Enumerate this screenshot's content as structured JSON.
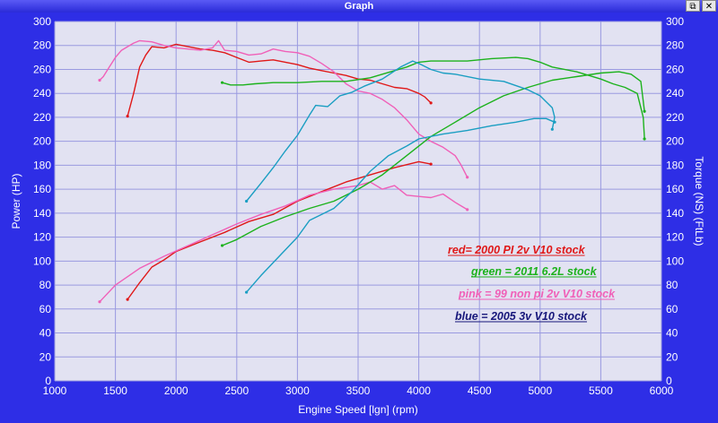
{
  "window": {
    "title": "Graph",
    "restore_label": "⧉",
    "close_label": "✕"
  },
  "colors": {
    "frame": "#2e2ee6",
    "plot_bg": "#e2e2f2",
    "grid": "#9a9ae0",
    "red": "#e01818",
    "green": "#1cb21c",
    "pink": "#f060b8",
    "blue": "#1a9ec2",
    "legend_blue": "#16167a"
  },
  "chart_data": {
    "type": "line",
    "xlabel": "Engine Speed [lgn] (rpm)",
    "ylabel_left": "Power (HP)",
    "ylabel_right": "Torque (NS) (FtLb)",
    "xlim": [
      1000,
      6000
    ],
    "ylim": [
      0,
      300
    ],
    "x_ticks": [
      "1000",
      "1500",
      "2000",
      "2500",
      "3000",
      "3500",
      "4000",
      "4500",
      "5000",
      "5500",
      "6000"
    ],
    "y_ticks": [
      "0",
      "20",
      "40",
      "60",
      "80",
      "100",
      "120",
      "140",
      "160",
      "180",
      "200",
      "220",
      "240",
      "260",
      "280",
      "300"
    ],
    "grid": true,
    "legend": [
      {
        "text": "red= 2000 PI 2v V10 stock",
        "color": "#e01818"
      },
      {
        "text": "green = 2011 6.2L stock",
        "color": "#1cb21c"
      },
      {
        "text": "pink = 99 non pi 2v V10 stock",
        "color": "#f060b8"
      },
      {
        "text": "blue = 2005 3v V10 stock",
        "color": "#16167a"
      }
    ],
    "series": [
      {
        "color": "#e01818",
        "kind": "torque",
        "points": [
          [
            1600,
            221
          ],
          [
            1650,
            240
          ],
          [
            1700,
            262
          ],
          [
            1750,
            272
          ],
          [
            1800,
            279
          ],
          [
            1900,
            278
          ],
          [
            2000,
            281
          ],
          [
            2100,
            279
          ],
          [
            2200,
            277
          ],
          [
            2300,
            276
          ],
          [
            2400,
            274
          ],
          [
            2500,
            270
          ],
          [
            2600,
            266
          ],
          [
            2700,
            267
          ],
          [
            2800,
            268
          ],
          [
            2900,
            266
          ],
          [
            3000,
            264
          ],
          [
            3100,
            261
          ],
          [
            3200,
            259
          ],
          [
            3300,
            257
          ],
          [
            3400,
            255
          ],
          [
            3500,
            252
          ],
          [
            3600,
            251
          ],
          [
            3700,
            248
          ],
          [
            3800,
            245
          ],
          [
            3900,
            244
          ],
          [
            4000,
            240
          ],
          [
            4050,
            237
          ],
          [
            4100,
            232
          ]
        ]
      },
      {
        "color": "#e01818",
        "kind": "power",
        "points": [
          [
            1600,
            68
          ],
          [
            1700,
            82
          ],
          [
            1800,
            95
          ],
          [
            1900,
            101
          ],
          [
            2000,
            108
          ],
          [
            2200,
            116
          ],
          [
            2400,
            124
          ],
          [
            2600,
            133
          ],
          [
            2800,
            139
          ],
          [
            3000,
            150
          ],
          [
            3200,
            158
          ],
          [
            3400,
            166
          ],
          [
            3600,
            172
          ],
          [
            3800,
            178
          ],
          [
            4000,
            183
          ],
          [
            4100,
            181
          ]
        ]
      },
      {
        "color": "#f060b8",
        "kind": "torque",
        "points": [
          [
            1370,
            251
          ],
          [
            1400,
            254
          ],
          [
            1450,
            262
          ],
          [
            1500,
            270
          ],
          [
            1550,
            276
          ],
          [
            1600,
            279
          ],
          [
            1650,
            282
          ],
          [
            1700,
            284
          ],
          [
            1800,
            283
          ],
          [
            1900,
            280
          ],
          [
            2000,
            278
          ],
          [
            2100,
            277
          ],
          [
            2200,
            276
          ],
          [
            2300,
            278
          ],
          [
            2350,
            284
          ],
          [
            2400,
            276
          ],
          [
            2500,
            275
          ],
          [
            2600,
            272
          ],
          [
            2700,
            273
          ],
          [
            2800,
            277
          ],
          [
            2900,
            275
          ],
          [
            3000,
            274
          ],
          [
            3100,
            271
          ],
          [
            3200,
            265
          ],
          [
            3300,
            258
          ],
          [
            3400,
            248
          ],
          [
            3500,
            242
          ],
          [
            3600,
            240
          ],
          [
            3700,
            235
          ],
          [
            3800,
            228
          ],
          [
            3900,
            218
          ],
          [
            4000,
            206
          ],
          [
            4100,
            200
          ],
          [
            4200,
            195
          ],
          [
            4300,
            188
          ],
          [
            4350,
            180
          ],
          [
            4400,
            170
          ]
        ]
      },
      {
        "color": "#f060b8",
        "kind": "power",
        "points": [
          [
            1370,
            66
          ],
          [
            1500,
            80
          ],
          [
            1700,
            94
          ],
          [
            1900,
            104
          ],
          [
            2100,
            113
          ],
          [
            2300,
            122
          ],
          [
            2500,
            131
          ],
          [
            2700,
            139
          ],
          [
            2900,
            146
          ],
          [
            3100,
            155
          ],
          [
            3300,
            160
          ],
          [
            3500,
            163
          ],
          [
            3600,
            166
          ],
          [
            3700,
            160
          ],
          [
            3800,
            163
          ],
          [
            3900,
            155
          ],
          [
            4000,
            154
          ],
          [
            4100,
            153
          ],
          [
            4200,
            156
          ],
          [
            4300,
            149
          ],
          [
            4400,
            143
          ]
        ]
      },
      {
        "color": "#1cb21c",
        "kind": "torque",
        "points": [
          [
            2380,
            249
          ],
          [
            2450,
            247
          ],
          [
            2550,
            247
          ],
          [
            2650,
            248
          ],
          [
            2800,
            249
          ],
          [
            3000,
            249
          ],
          [
            3200,
            250
          ],
          [
            3400,
            250
          ],
          [
            3600,
            253
          ],
          [
            3700,
            256
          ],
          [
            3800,
            259
          ],
          [
            3900,
            262
          ],
          [
            4000,
            266
          ],
          [
            4100,
            267
          ],
          [
            4200,
            267
          ],
          [
            4400,
            267
          ],
          [
            4600,
            269
          ],
          [
            4800,
            270
          ],
          [
            4900,
            269
          ],
          [
            5000,
            266
          ],
          [
            5100,
            262
          ],
          [
            5300,
            258
          ],
          [
            5500,
            252
          ],
          [
            5600,
            248
          ],
          [
            5700,
            245
          ],
          [
            5800,
            240
          ],
          [
            5850,
            220
          ],
          [
            5860,
            202
          ]
        ]
      },
      {
        "color": "#1cb21c",
        "kind": "power",
        "points": [
          [
            2380,
            113
          ],
          [
            2500,
            118
          ],
          [
            2700,
            129
          ],
          [
            2900,
            137
          ],
          [
            3100,
            144
          ],
          [
            3300,
            150
          ],
          [
            3500,
            160
          ],
          [
            3700,
            172
          ],
          [
            3900,
            188
          ],
          [
            4100,
            204
          ],
          [
            4300,
            216
          ],
          [
            4500,
            228
          ],
          [
            4700,
            238
          ],
          [
            4900,
            245
          ],
          [
            5100,
            251
          ],
          [
            5300,
            254
          ],
          [
            5500,
            257
          ],
          [
            5650,
            258
          ],
          [
            5750,
            256
          ],
          [
            5830,
            250
          ],
          [
            5860,
            225
          ]
        ]
      },
      {
        "color": "#1a9ec2",
        "kind": "torque",
        "points": [
          [
            2580,
            150
          ],
          [
            2700,
            165
          ],
          [
            2800,
            178
          ],
          [
            2900,
            192
          ],
          [
            3000,
            205
          ],
          [
            3100,
            222
          ],
          [
            3150,
            230
          ],
          [
            3250,
            229
          ],
          [
            3350,
            238
          ],
          [
            3450,
            241
          ],
          [
            3550,
            246
          ],
          [
            3700,
            252
          ],
          [
            3850,
            262
          ],
          [
            3950,
            267
          ],
          [
            4000,
            265
          ],
          [
            4100,
            260
          ],
          [
            4200,
            257
          ],
          [
            4300,
            256
          ],
          [
            4500,
            252
          ],
          [
            4700,
            250
          ],
          [
            4900,
            243
          ],
          [
            5000,
            238
          ],
          [
            5100,
            228
          ],
          [
            5120,
            220
          ],
          [
            5100,
            210
          ]
        ]
      },
      {
        "color": "#1a9ec2",
        "kind": "power",
        "points": [
          [
            2580,
            74
          ],
          [
            2700,
            88
          ],
          [
            2850,
            104
          ],
          [
            3000,
            120
          ],
          [
            3100,
            134
          ],
          [
            3200,
            139
          ],
          [
            3300,
            144
          ],
          [
            3450,
            158
          ],
          [
            3600,
            175
          ],
          [
            3750,
            188
          ],
          [
            3900,
            196
          ],
          [
            4000,
            202
          ],
          [
            4200,
            206
          ],
          [
            4400,
            209
          ],
          [
            4600,
            213
          ],
          [
            4800,
            216
          ],
          [
            4950,
            219
          ],
          [
            5050,
            219
          ],
          [
            5120,
            216
          ]
        ]
      }
    ]
  }
}
